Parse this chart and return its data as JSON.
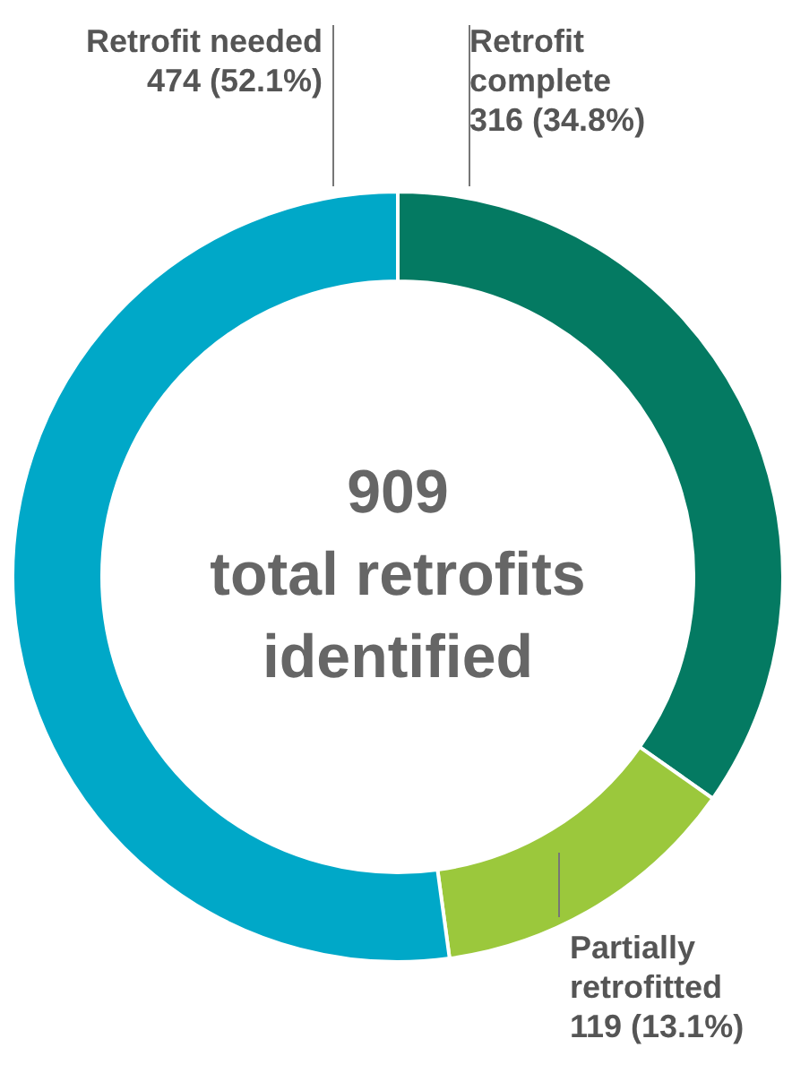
{
  "chart_data": {
    "type": "donut",
    "categories": [
      "Retrofit complete",
      "Partially retrofitted",
      "Retrofit needed"
    ],
    "values": [
      316,
      119,
      474
    ],
    "colors": [
      "#047a62",
      "#9bc83c",
      "#00a8c8"
    ],
    "value_labels": [
      "316 (34.8%)",
      "119 (13.1%)",
      "474 (52.1%)"
    ],
    "annotations": [
      "909",
      "total retrofits",
      "identified"
    ]
  }
}
